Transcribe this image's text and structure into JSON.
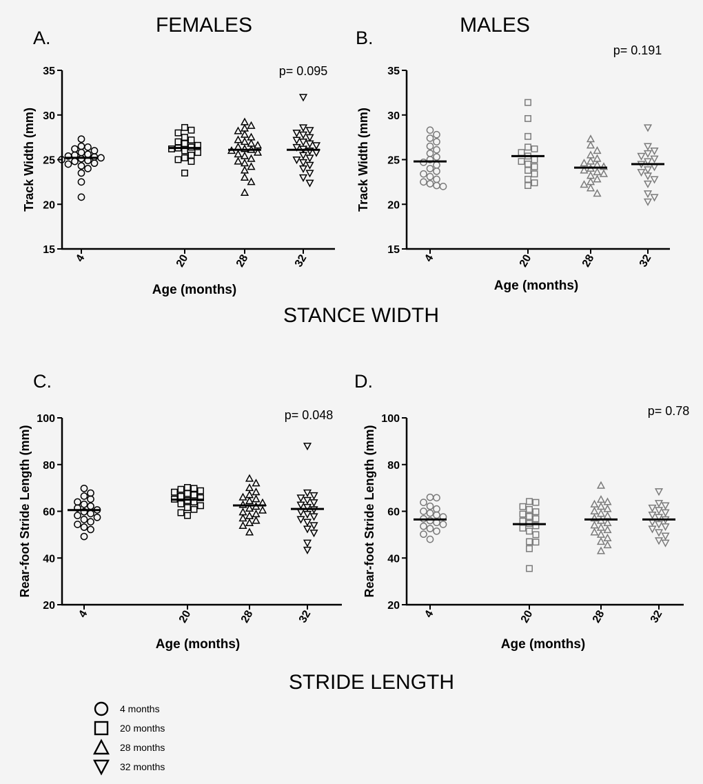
{
  "headings": {
    "females": "FEMALES",
    "males": "MALES",
    "stance": "STANCE WIDTH",
    "stride": "STRIDE LENGTH"
  },
  "legend": [
    {
      "marker": "circle",
      "label": "4 months"
    },
    {
      "marker": "square",
      "label": "20 months"
    },
    {
      "marker": "triangle-up",
      "label": "28 months"
    },
    {
      "marker": "triangle-down",
      "label": "32 months"
    }
  ],
  "colors": {
    "female_marker": "#000000",
    "male_marker": "#7a7a7a",
    "mean_line": "#000000",
    "background": "#f4f4f4"
  },
  "chart_data": [
    {
      "panel": "A.",
      "type": "scatter",
      "title": "FEMALES",
      "xlabel": "Age (months)",
      "ylabel": "Track Width (mm)",
      "ylim": [
        15,
        35
      ],
      "yticks": [
        15,
        20,
        25,
        30,
        35
      ],
      "categories": [
        "4",
        "20",
        "28",
        "32"
      ],
      "annotation": "p= 0.095",
      "marker_color": "#000000",
      "series": [
        {
          "name": "4 months",
          "marker": "circle",
          "mean": 25.2,
          "values": [
            27.3,
            26.5,
            26.4,
            26.2,
            26.0,
            25.8,
            25.6,
            25.5,
            25.4,
            25.3,
            25.2,
            25.1,
            25.0,
            24.9,
            24.8,
            24.6,
            24.5,
            24.3,
            24.0,
            23.5,
            22.5,
            20.8
          ]
        },
        {
          "name": "20 months",
          "marker": "square",
          "mean": 26.3,
          "values": [
            28.6,
            28.3,
            28.0,
            27.5,
            27.2,
            27.0,
            26.8,
            26.6,
            26.4,
            26.3,
            26.2,
            26.0,
            25.8,
            25.5,
            25.2,
            25.0,
            24.8,
            23.5
          ]
        },
        {
          "name": "28 months",
          "marker": "triangle-up",
          "mean": 26.1,
          "values": [
            29.2,
            28.8,
            28.5,
            28.2,
            27.8,
            27.5,
            27.2,
            27.0,
            26.8,
            26.6,
            26.4,
            26.2,
            26.1,
            26.0,
            25.8,
            25.6,
            25.4,
            25.1,
            24.8,
            24.6,
            24.2,
            23.8,
            23.0,
            22.5,
            21.3
          ]
        },
        {
          "name": "32 months",
          "marker": "triangle-down",
          "mean": 26.1,
          "values": [
            32.0,
            28.6,
            28.3,
            28.0,
            27.8,
            27.5,
            27.2,
            27.0,
            26.8,
            26.6,
            26.4,
            26.2,
            26.0,
            25.8,
            25.5,
            25.2,
            25.0,
            24.7,
            24.4,
            24.0,
            23.5,
            23.0,
            22.4
          ]
        }
      ]
    },
    {
      "panel": "B.",
      "type": "scatter",
      "title": "MALES",
      "xlabel": "Age (months)",
      "ylabel": "Track Width (mm)",
      "ylim": [
        15,
        35
      ],
      "yticks": [
        15,
        20,
        25,
        30,
        35
      ],
      "categories": [
        "4",
        "20",
        "28",
        "32"
      ],
      "annotation": "p= 0.191",
      "marker_color": "#7a7a7a",
      "series": [
        {
          "name": "4 months",
          "marker": "circle",
          "mean": 24.8,
          "values": [
            28.3,
            27.8,
            27.4,
            27.0,
            26.5,
            26.1,
            25.7,
            25.3,
            25.0,
            24.7,
            24.4,
            24.0,
            23.7,
            23.4,
            23.1,
            22.8,
            22.5,
            22.3,
            22.1,
            22.0
          ]
        },
        {
          "name": "20 months",
          "marker": "square",
          "mean": 25.4,
          "values": [
            31.4,
            29.6,
            27.6,
            26.4,
            26.2,
            25.8,
            25.4,
            25.0,
            24.8,
            24.5,
            24.2,
            23.8,
            23.4,
            22.8,
            22.4,
            22.1
          ]
        },
        {
          "name": "28 months",
          "marker": "triangle-up",
          "mean": 24.1,
          "values": [
            27.3,
            26.6,
            26.0,
            25.5,
            25.1,
            24.8,
            24.6,
            24.4,
            24.2,
            24.0,
            23.8,
            23.6,
            23.4,
            23.2,
            22.8,
            22.5,
            22.2,
            21.8,
            21.2
          ]
        },
        {
          "name": "32 months",
          "marker": "triangle-down",
          "mean": 24.5,
          "values": [
            28.6,
            26.5,
            26.0,
            25.7,
            25.4,
            25.1,
            24.8,
            24.5,
            24.2,
            23.9,
            23.6,
            23.2,
            22.8,
            22.3,
            21.2,
            20.8,
            20.3
          ]
        }
      ]
    },
    {
      "panel": "C.",
      "type": "scatter",
      "title": "",
      "xlabel": "Age (months)",
      "ylabel": "Rear-foot Stride Length (mm)",
      "ylim": [
        20,
        100
      ],
      "yticks": [
        20,
        40,
        60,
        80,
        100
      ],
      "categories": [
        "4",
        "20",
        "28",
        "32"
      ],
      "annotation": "p= 0.048",
      "marker_color": "#000000",
      "series": [
        {
          "name": "4 months",
          "marker": "circle",
          "mean": 60.5,
          "values": [
            69.8,
            67.8,
            66.5,
            65.2,
            64.0,
            63.0,
            62.2,
            61.4,
            60.6,
            59.8,
            59.0,
            58.2,
            57.4,
            56.5,
            55.5,
            54.4,
            53.2,
            52.2,
            49.2
          ]
        },
        {
          "name": "20 months",
          "marker": "square",
          "mean": 65.0,
          "values": [
            70.2,
            69.8,
            69.4,
            68.8,
            68.2,
            67.6,
            67.0,
            66.4,
            65.8,
            65.2,
            64.6,
            64.0,
            63.2,
            62.4,
            61.6,
            60.8,
            59.4,
            58.2
          ]
        },
        {
          "name": "28 months",
          "marker": "triangle-up",
          "mean": 62.5,
          "values": [
            74.0,
            72.0,
            70.0,
            68.2,
            67.0,
            66.0,
            65.2,
            64.4,
            63.6,
            62.8,
            62.0,
            61.2,
            60.4,
            59.6,
            58.8,
            58.0,
            57.0,
            56.0,
            55.0,
            53.8,
            51.0
          ]
        },
        {
          "name": "32 months",
          "marker": "triangle-down",
          "mean": 61.0,
          "values": [
            88.0,
            68.0,
            66.8,
            65.8,
            64.8,
            63.8,
            62.8,
            61.8,
            60.8,
            59.8,
            58.8,
            57.8,
            56.6,
            55.4,
            54.0,
            52.5,
            50.8,
            46.5,
            43.5
          ]
        }
      ]
    },
    {
      "panel": "D.",
      "type": "scatter",
      "title": "",
      "xlabel": "Age (months)",
      "ylabel": "Rear-foot Stride Length (mm)",
      "ylim": [
        20,
        100
      ],
      "yticks": [
        20,
        40,
        60,
        80,
        100
      ],
      "categories": [
        "4",
        "20",
        "28",
        "32"
      ],
      "annotation": "p= 0.78",
      "marker_color": "#7a7a7a",
      "series": [
        {
          "name": "4 months",
          "marker": "circle",
          "mean": 56.5,
          "values": [
            66.0,
            65.8,
            63.8,
            62.2,
            61.0,
            60.0,
            59.2,
            58.4,
            57.6,
            56.8,
            56.0,
            55.2,
            54.4,
            53.6,
            52.6,
            51.5,
            50.2,
            48.0
          ]
        },
        {
          "name": "20 months",
          "marker": "square",
          "mean": 54.5,
          "values": [
            64.2,
            63.8,
            62.0,
            60.8,
            59.8,
            58.8,
            57.8,
            56.8,
            55.8,
            54.8,
            53.8,
            52.8,
            51.5,
            50.0,
            47.0,
            46.8,
            44.0,
            35.5
          ]
        },
        {
          "name": "28 months",
          "marker": "triangle-up",
          "mean": 56.5,
          "values": [
            71.0,
            65.0,
            64.0,
            63.0,
            62.0,
            61.0,
            60.0,
            59.0,
            58.0,
            57.0,
            56.0,
            55.0,
            54.0,
            53.0,
            52.0,
            51.0,
            50.0,
            48.5,
            47.0,
            45.5,
            43.0
          ]
        },
        {
          "name": "32 months",
          "marker": "triangle-down",
          "mean": 56.5,
          "values": [
            68.5,
            63.5,
            62.5,
            61.5,
            60.5,
            59.5,
            58.5,
            57.5,
            56.5,
            55.5,
            54.5,
            53.5,
            52.5,
            51.0,
            49.5,
            47.5,
            46.5
          ]
        }
      ]
    }
  ]
}
